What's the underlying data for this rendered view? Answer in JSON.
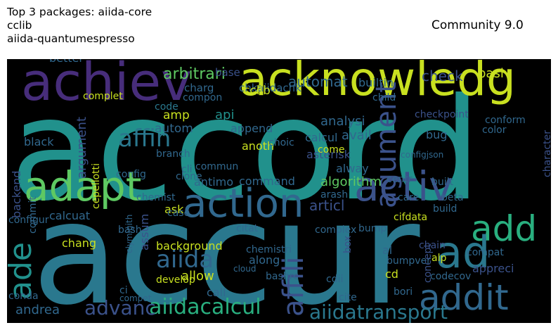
{
  "header": {
    "title": "Top 3 packages: aiida-core\ncclib\naiida-quantumespresso",
    "community": "Community 9.0"
  },
  "colors": {
    "teal": "#21918c",
    "blue": "#31688e",
    "green": "#5ec962",
    "yellow": "#c8e020",
    "purple": "#472d7b",
    "dark": "#3b528b",
    "cyan": "#2a788e"
  },
  "words": [
    {
      "t": "accord",
      "c": "#21918c"
    },
    {
      "t": "accur",
      "c": "#2a788e"
    },
    {
      "t": "achiev",
      "c": "#472d7b"
    },
    {
      "t": "acknowledg",
      "c": "#c8e020"
    },
    {
      "t": "adapt",
      "c": "#5ec962"
    },
    {
      "t": "action",
      "c": "#31688e"
    },
    {
      "t": "activ",
      "c": "#3b528b"
    },
    {
      "t": "add",
      "c": "#29af7f"
    },
    {
      "t": "ad",
      "c": "#2a788e"
    },
    {
      "t": "addit",
      "c": "#31688e"
    },
    {
      "t": "ade",
      "c": "#21918c"
    },
    {
      "t": "agument",
      "c": "#3b528b"
    },
    {
      "t": "affin",
      "c": "#2a788e"
    },
    {
      "t": "affili",
      "c": "#3b528b"
    },
    {
      "t": "aiida",
      "c": "#31688e"
    },
    {
      "t": "aiidacalcul",
      "c": "#29af7f"
    },
    {
      "t": "advanc",
      "c": "#3b528b"
    },
    {
      "t": "aiidatransport",
      "c": "#2a788e"
    },
    {
      "t": "arbitrari",
      "c": "#5ec962"
    },
    {
      "t": "chkaiidachk",
      "c": "#31688e"
    },
    {
      "t": "check",
      "c": "#3b528b"
    },
    {
      "t": "better",
      "c": "#31688e"
    },
    {
      "t": "basi",
      "c": "#c8e020"
    },
    {
      "t": "base",
      "c": "#3b528b"
    },
    {
      "t": "charg",
      "c": "#31688e"
    },
    {
      "t": "cclib",
      "c": "#c8e020"
    },
    {
      "t": "automat",
      "c": "#31688e"
    },
    {
      "t": "builtin",
      "c": "#31688e"
    },
    {
      "t": "complet",
      "c": "#c8e020"
    },
    {
      "t": "compon",
      "c": "#31688e"
    },
    {
      "t": "code",
      "c": "#2a788e"
    },
    {
      "t": "amp",
      "c": "#c8e020"
    },
    {
      "t": "api",
      "c": "#21918c"
    },
    {
      "t": "autom",
      "c": "#31688e"
    },
    {
      "t": "append",
      "c": "#31688e"
    },
    {
      "t": "anoth",
      "c": "#c8e020"
    },
    {
      "t": "analysi",
      "c": "#31688e"
    },
    {
      "t": "avail",
      "c": "#31688e"
    },
    {
      "t": "checkpoint",
      "c": "#3b528b"
    },
    {
      "t": "color",
      "c": "#31688e"
    },
    {
      "t": "conform",
      "c": "#31688e"
    },
    {
      "t": "bug",
      "c": "#31688e"
    },
    {
      "t": "calcul",
      "c": "#31688e"
    },
    {
      "t": "asterisk",
      "c": "#3b528b"
    },
    {
      "t": "choic",
      "c": "#31688e"
    },
    {
      "t": "alway",
      "c": "#31688e"
    },
    {
      "t": "come",
      "c": "#c8e020"
    },
    {
      "t": "branch",
      "c": "#31688e"
    },
    {
      "t": "clone",
      "c": "#31688e"
    },
    {
      "t": "cli",
      "c": "#31688e"
    },
    {
      "t": "cepellotti",
      "c": "#c8e020"
    },
    {
      "t": "argument",
      "c": "#3b528b"
    },
    {
      "t": "config",
      "c": "#31688e"
    },
    {
      "t": "backend",
      "c": "#3b528b"
    },
    {
      "t": "commun",
      "c": "#31688e"
    },
    {
      "t": "antimo",
      "c": "#31688e"
    },
    {
      "t": "command",
      "c": "#31688e"
    },
    {
      "t": "algorithm",
      "c": "#5ec962"
    },
    {
      "t": "centr",
      "c": "#31688e"
    },
    {
      "t": "built",
      "c": "#31688e"
    },
    {
      "t": "beta",
      "c": "#31688e"
    },
    {
      "t": "build",
      "c": "#31688e"
    },
    {
      "t": "care",
      "c": "#31688e"
    },
    {
      "t": "articl",
      "c": "#3b528b"
    },
    {
      "t": "arash",
      "c": "#31688e"
    },
    {
      "t": "cifdata",
      "c": "#c8e020"
    },
    {
      "t": "chemist",
      "c": "#31688e"
    },
    {
      "t": "ask",
      "c": "#c8e020"
    },
    {
      "t": "calcuat",
      "c": "#31688e"
    },
    {
      "t": "case",
      "c": "#31688e"
    },
    {
      "t": "commit",
      "c": "#31688e"
    },
    {
      "t": "configur",
      "c": "#31688e"
    },
    {
      "t": "bash",
      "c": "#31688e"
    },
    {
      "t": "citat",
      "c": "#31688e"
    },
    {
      "t": "complex",
      "c": "#31688e"
    },
    {
      "t": "bump",
      "c": "#31688e"
    },
    {
      "t": "box",
      "c": "#3b528b"
    },
    {
      "t": "chang",
      "c": "#c8e020"
    },
    {
      "t": "assum",
      "c": "#3b528b"
    },
    {
      "t": "clymigith",
      "c": "#31688e"
    },
    {
      "t": "background",
      "c": "#c8e020"
    },
    {
      "t": "chemistri",
      "c": "#31688e"
    },
    {
      "t": "chain",
      "c": "#3b528b"
    },
    {
      "t": "al",
      "c": "#31688e"
    },
    {
      "t": "alp",
      "c": "#c8e020"
    },
    {
      "t": "compat",
      "c": "#31688e"
    },
    {
      "t": "appreci",
      "c": "#3b528b"
    },
    {
      "t": "bumpver",
      "c": "#31688e"
    },
    {
      "t": "concept",
      "c": "#3b528b"
    },
    {
      "t": "allow",
      "c": "#c8e020"
    },
    {
      "t": "along",
      "c": "#31688e"
    },
    {
      "t": "cloud",
      "c": "#31688e"
    },
    {
      "t": "bashrc",
      "c": "#31688e"
    },
    {
      "t": "cdii",
      "c": "#31688e"
    },
    {
      "t": "cd",
      "c": "#c8e020"
    },
    {
      "t": "bori",
      "c": "#31688e"
    },
    {
      "t": "codecov",
      "c": "#31688e"
    },
    {
      "t": "develop",
      "c": "#c8e020"
    },
    {
      "t": "ci",
      "c": "#31688e"
    },
    {
      "t": "compet",
      "c": "#31688e"
    },
    {
      "t": "call",
      "c": "#31688e"
    },
    {
      "t": "cite",
      "c": "#31688e"
    },
    {
      "t": "conda",
      "c": "#31688e"
    },
    {
      "t": "andrea",
      "c": "#31688e"
    },
    {
      "t": "black",
      "c": "#31688e"
    },
    {
      "t": "character",
      "c": "#3b528b"
    },
    {
      "t": "child",
      "c": "#31688e"
    },
    {
      "t": "configjson",
      "c": "#31688e"
    }
  ]
}
